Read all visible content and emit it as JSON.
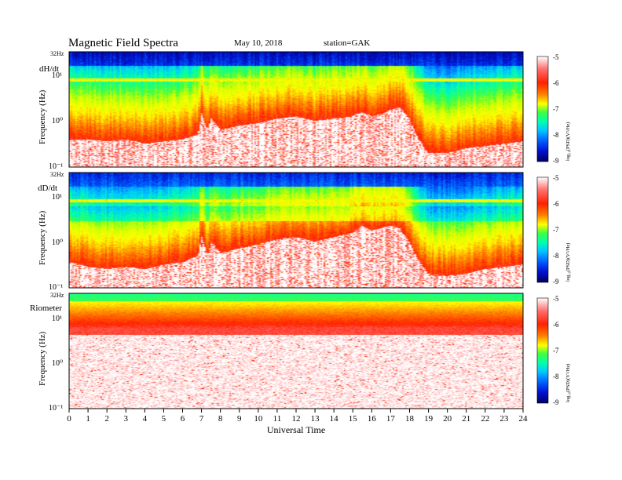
{
  "header": {
    "title": "Magnetic Field Spectra",
    "date": "May 10, 2018",
    "station": "station=GAK"
  },
  "colors": {
    "colormap": [
      "#000060",
      "#0010d0",
      "#0060ff",
      "#00c8ff",
      "#00ffb0",
      "#40ff40",
      "#d0ff00",
      "#ffff00",
      "#ff8000",
      "#ff2000",
      "#ff7070",
      "#ffffff"
    ]
  },
  "chart_data": [
    {
      "type": "heatmap",
      "panel_label": "dH/dt",
      "ylabel": "Frequency (Hz)",
      "yscale": "log",
      "top_label": "32Hz",
      "y_tick_labels": [
        "10¹",
        "10⁰",
        "10⁻¹"
      ],
      "y_tick_values": [
        10,
        1,
        0.1
      ],
      "ylim": [
        0.1,
        32
      ],
      "xlim": [
        0,
        24
      ],
      "colorbar": {
        "label": "log₁₀(PSD)(V²/Hz)",
        "ticks": [
          "-5",
          "-6",
          "-7",
          "-8",
          "-9"
        ],
        "range": [
          -9,
          -5
        ]
      },
      "noise_floor_log10_hz": {
        "hours": [
          0,
          1,
          2,
          3,
          4,
          5,
          6,
          6.8,
          7.0,
          7.3,
          7.5,
          8,
          9,
          10,
          11,
          12,
          13,
          14,
          15,
          15.5,
          16,
          16.5,
          17,
          17.5,
          18,
          18.5,
          19,
          20,
          21,
          22,
          23,
          24
        ],
        "values": [
          -0.4,
          -0.4,
          -0.45,
          -0.4,
          -0.5,
          -0.45,
          -0.4,
          -0.3,
          0.15,
          -0.2,
          0.05,
          -0.2,
          -0.1,
          -0.05,
          0.05,
          0.1,
          0.0,
          0.05,
          0.1,
          0.2,
          0.1,
          0.15,
          0.25,
          0.3,
          0.05,
          -0.4,
          -0.7,
          -0.7,
          -0.6,
          -0.55,
          -0.5,
          -0.45
        ]
      }
    },
    {
      "type": "heatmap",
      "panel_label": "dD/dt",
      "ylabel": "Frequency (Hz)",
      "yscale": "log",
      "top_label": "32Hz",
      "y_tick_labels": [
        "10¹",
        "10⁰",
        "10⁻¹"
      ],
      "y_tick_values": [
        10,
        1,
        0.1
      ],
      "ylim": [
        0.1,
        32
      ],
      "xlim": [
        0,
        24
      ],
      "colorbar": {
        "label": "log₁₀(PSD)(V²/Hz)",
        "ticks": [
          "-5",
          "-6",
          "-7",
          "-8",
          "-9"
        ],
        "range": [
          -9,
          -5
        ]
      },
      "noise_floor_log10_hz": {
        "hours": [
          0,
          1,
          2,
          3,
          4,
          5,
          6,
          6.8,
          7.0,
          7.3,
          7.5,
          8,
          9,
          10,
          11,
          12,
          13,
          14,
          15,
          15.5,
          16,
          16.5,
          17,
          17.5,
          18,
          18.5,
          19,
          20,
          21,
          22,
          23,
          24
        ],
        "values": [
          -0.45,
          -0.55,
          -0.6,
          -0.55,
          -0.6,
          -0.5,
          -0.45,
          -0.3,
          0.1,
          -0.3,
          0.0,
          -0.25,
          -0.15,
          -0.05,
          0.05,
          0.1,
          0.0,
          0.1,
          0.2,
          0.35,
          0.25,
          0.3,
          0.35,
          0.3,
          0.0,
          -0.4,
          -0.7,
          -0.75,
          -0.7,
          -0.6,
          -0.55,
          -0.5
        ]
      }
    },
    {
      "type": "heatmap",
      "panel_label": "Riometer",
      "ylabel": "Frequency (Hz)",
      "yscale": "log",
      "top_label": "32Hz",
      "y_tick_labels": [
        "10¹",
        "10⁰",
        "10⁻¹"
      ],
      "y_tick_values": [
        10,
        1,
        0.1
      ],
      "ylim": [
        0.1,
        32
      ],
      "xlim": [
        0,
        24
      ],
      "colorbar": {
        "label": "log₁₀(PSD)(V²/Hz)",
        "ticks": [
          "-5",
          "-6",
          "-7",
          "-8",
          "-9"
        ],
        "range": [
          -9,
          -5
        ]
      },
      "noise_floor_log10_hz": {
        "hours": [
          0,
          4,
          8,
          12,
          16,
          20,
          24
        ],
        "values": [
          0.75,
          0.75,
          0.75,
          0.75,
          0.75,
          0.75,
          0.75
        ]
      }
    }
  ],
  "x_axis": {
    "label": "Universal Time",
    "tick_labels": [
      "0",
      "1",
      "2",
      "3",
      "4",
      "5",
      "6",
      "7",
      "8",
      "9",
      "10",
      "11",
      "12",
      "13",
      "14",
      "15",
      "16",
      "17",
      "18",
      "19",
      "20",
      "21",
      "22",
      "23",
      "24"
    ]
  }
}
